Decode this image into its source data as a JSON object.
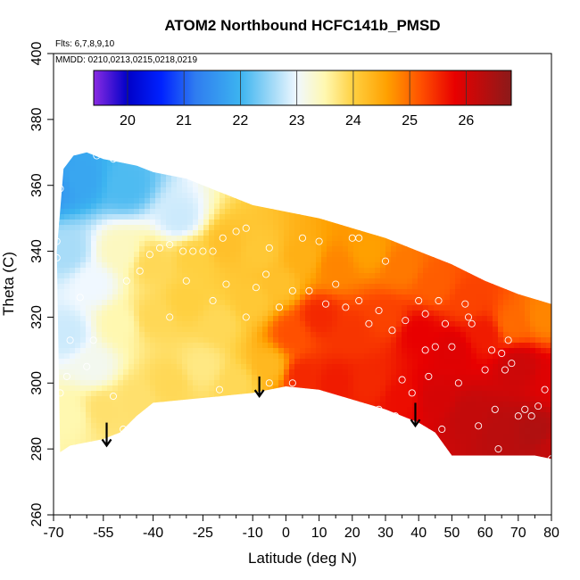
{
  "chart_data": {
    "type": "heatmap",
    "title": "ATOM2 Northbound HCFC141b_PMSD",
    "annotations": {
      "flights": "Flts: 6,7,8,9,10",
      "dates": "MMDD: 0210,0213,0215,0218,0219"
    },
    "xlabel": "Latitude (deg N)",
    "ylabel": "Theta (C)",
    "xlim": [
      -70,
      80
    ],
    "ylim": [
      260,
      400
    ],
    "x_ticks": [
      -70,
      -55,
      -40,
      -25,
      -10,
      0,
      10,
      20,
      30,
      40,
      50,
      60,
      70,
      80
    ],
    "x_minor_ticks": [
      -65,
      -60,
      -50,
      -45,
      -35,
      -30,
      -20,
      -15,
      -5,
      5,
      15,
      25,
      35,
      45,
      55,
      65,
      75
    ],
    "y_ticks": [
      260,
      280,
      300,
      320,
      340,
      360,
      380,
      400
    ],
    "colorbar": {
      "range": [
        19.4,
        26.8
      ],
      "ticks": [
        20,
        21,
        22,
        23,
        24,
        25,
        26
      ],
      "stops": [
        {
          "v": 19.4,
          "c": "#8a2be2"
        },
        {
          "v": 20.0,
          "c": "#0000c8"
        },
        {
          "v": 20.6,
          "c": "#0022ff"
        },
        {
          "v": 21.2,
          "c": "#2f7cf0"
        },
        {
          "v": 22.0,
          "c": "#3cb4f0"
        },
        {
          "v": 22.6,
          "c": "#a8dcf8"
        },
        {
          "v": 23.0,
          "c": "#f0f8ff"
        },
        {
          "v": 23.5,
          "c": "#fff8b0"
        },
        {
          "v": 24.0,
          "c": "#ffd040"
        },
        {
          "v": 24.6,
          "c": "#ffa000"
        },
        {
          "v": 25.2,
          "c": "#ff5000"
        },
        {
          "v": 25.8,
          "c": "#e80000"
        },
        {
          "v": 26.8,
          "c": "#8b1a1a"
        }
      ]
    },
    "region_boundary": {
      "top": [
        [
          -69,
          340
        ],
        [
          -67,
          365
        ],
        [
          -64,
          369
        ],
        [
          -60,
          370
        ],
        [
          -55,
          368
        ],
        [
          -50,
          367
        ],
        [
          -45,
          366
        ],
        [
          -40,
          364
        ],
        [
          -30,
          362
        ],
        [
          -20,
          358
        ],
        [
          -10,
          354
        ],
        [
          0,
          352
        ],
        [
          10,
          350
        ],
        [
          20,
          347
        ],
        [
          30,
          344
        ],
        [
          40,
          340
        ],
        [
          50,
          336
        ],
        [
          60,
          331
        ],
        [
          70,
          327
        ],
        [
          80,
          324
        ]
      ],
      "bottom": [
        [
          80,
          277
        ],
        [
          75,
          278
        ],
        [
          60,
          278
        ],
        [
          50,
          278
        ],
        [
          45,
          285
        ],
        [
          40,
          288
        ],
        [
          30,
          292
        ],
        [
          20,
          295
        ],
        [
          10,
          298
        ],
        [
          0,
          299
        ],
        [
          -10,
          297
        ],
        [
          -20,
          296
        ],
        [
          -30,
          295
        ],
        [
          -40,
          294
        ],
        [
          -45,
          290
        ],
        [
          -50,
          285
        ],
        [
          -55,
          283
        ],
        [
          -60,
          282
        ],
        [
          -65,
          281
        ],
        [
          -68,
          279
        ]
      ]
    },
    "field_nodes": [
      {
        "lat": -70,
        "theta": 360,
        "v": 21.6
      },
      {
        "lat": -62,
        "theta": 362,
        "v": 21.8
      },
      {
        "lat": -48,
        "theta": 360,
        "v": 22.1
      },
      {
        "lat": -32,
        "theta": 350,
        "v": 22.8
      },
      {
        "lat": -66,
        "theta": 340,
        "v": 22.6
      },
      {
        "lat": -58,
        "theta": 330,
        "v": 23.0
      },
      {
        "lat": -50,
        "theta": 340,
        "v": 23.4
      },
      {
        "lat": -40,
        "theta": 336,
        "v": 23.9
      },
      {
        "lat": -28,
        "theta": 338,
        "v": 24.0
      },
      {
        "lat": -18,
        "theta": 342,
        "v": 24.2
      },
      {
        "lat": -8,
        "theta": 340,
        "v": 24.1
      },
      {
        "lat": 5,
        "theta": 338,
        "v": 24.4
      },
      {
        "lat": 15,
        "theta": 335,
        "v": 24.8
      },
      {
        "lat": 25,
        "theta": 340,
        "v": 24.6
      },
      {
        "lat": 35,
        "theta": 335,
        "v": 24.9
      },
      {
        "lat": 45,
        "theta": 330,
        "v": 25.1
      },
      {
        "lat": 55,
        "theta": 325,
        "v": 25.3
      },
      {
        "lat": 68,
        "theta": 318,
        "v": 25.0
      },
      {
        "lat": 78,
        "theta": 320,
        "v": 24.8
      },
      {
        "lat": -66,
        "theta": 315,
        "v": 22.8
      },
      {
        "lat": -58,
        "theta": 305,
        "v": 23.1
      },
      {
        "lat": -50,
        "theta": 318,
        "v": 23.5
      },
      {
        "lat": -40,
        "theta": 320,
        "v": 23.9
      },
      {
        "lat": -30,
        "theta": 325,
        "v": 24.0
      },
      {
        "lat": -20,
        "theta": 318,
        "v": 23.9
      },
      {
        "lat": -10,
        "theta": 325,
        "v": 24.1
      },
      {
        "lat": -2,
        "theta": 330,
        "v": 24.2
      },
      {
        "lat": 2,
        "theta": 315,
        "v": 25.2
      },
      {
        "lat": 10,
        "theta": 320,
        "v": 25.5
      },
      {
        "lat": 20,
        "theta": 315,
        "v": 25.4
      },
      {
        "lat": 30,
        "theta": 320,
        "v": 25.3
      },
      {
        "lat": 40,
        "theta": 315,
        "v": 25.8
      },
      {
        "lat": 50,
        "theta": 310,
        "v": 25.9
      },
      {
        "lat": 60,
        "theta": 315,
        "v": 25.6
      },
      {
        "lat": 70,
        "theta": 305,
        "v": 26.1
      },
      {
        "lat": 80,
        "theta": 300,
        "v": 25.9
      },
      {
        "lat": -65,
        "theta": 290,
        "v": 23.5
      },
      {
        "lat": -55,
        "theta": 292,
        "v": 23.8
      },
      {
        "lat": -45,
        "theta": 295,
        "v": 23.8
      },
      {
        "lat": -35,
        "theta": 300,
        "v": 23.9
      },
      {
        "lat": -25,
        "theta": 305,
        "v": 23.7
      },
      {
        "lat": -15,
        "theta": 300,
        "v": 23.9
      },
      {
        "lat": -5,
        "theta": 305,
        "v": 24.3
      },
      {
        "lat": 5,
        "theta": 302,
        "v": 25.5
      },
      {
        "lat": 15,
        "theta": 300,
        "v": 25.6
      },
      {
        "lat": 25,
        "theta": 300,
        "v": 25.5
      },
      {
        "lat": 35,
        "theta": 295,
        "v": 25.7
      },
      {
        "lat": 45,
        "theta": 295,
        "v": 26.0
      },
      {
        "lat": 55,
        "theta": 290,
        "v": 26.2
      },
      {
        "lat": 65,
        "theta": 285,
        "v": 26.3
      },
      {
        "lat": 75,
        "theta": 285,
        "v": 26.4
      },
      {
        "lat": 80,
        "theta": 280,
        "v": 26.2
      }
    ],
    "sample_points": [
      [
        -57,
        369
      ],
      [
        -52,
        368
      ],
      [
        -68,
        359
      ],
      [
        -69,
        343
      ],
      [
        -69,
        338
      ],
      [
        -70,
        334
      ],
      [
        -62,
        326
      ],
      [
        -65,
        313
      ],
      [
        -58,
        313
      ],
      [
        -60,
        305
      ],
      [
        -66,
        302
      ],
      [
        -68,
        297
      ],
      [
        -52,
        296
      ],
      [
        -49,
        286
      ],
      [
        -48,
        331
      ],
      [
        -44,
        334
      ],
      [
        -41,
        339
      ],
      [
        -38,
        341
      ],
      [
        -35,
        342
      ],
      [
        -31,
        340
      ],
      [
        -28,
        340
      ],
      [
        -25,
        340
      ],
      [
        -22,
        340
      ],
      [
        -19,
        344
      ],
      [
        -15,
        346
      ],
      [
        -12,
        347
      ],
      [
        -5,
        341
      ],
      [
        -30,
        331
      ],
      [
        -22,
        325
      ],
      [
        -18,
        330
      ],
      [
        -12,
        320
      ],
      [
        -35,
        320
      ],
      [
        -9,
        329
      ],
      [
        -6,
        333
      ],
      [
        -2,
        323
      ],
      [
        2,
        328
      ],
      [
        5,
        344
      ],
      [
        7,
        328
      ],
      [
        10,
        343
      ],
      [
        12,
        324
      ],
      [
        15,
        330
      ],
      [
        20,
        344
      ],
      [
        22,
        344
      ],
      [
        25,
        347
      ],
      [
        -20,
        298
      ],
      [
        -5,
        300
      ],
      [
        2,
        300
      ],
      [
        8,
        297
      ],
      [
        12,
        294
      ],
      [
        18,
        323
      ],
      [
        22,
        325
      ],
      [
        25,
        318
      ],
      [
        28,
        322
      ],
      [
        30,
        337
      ],
      [
        32,
        316
      ],
      [
        36,
        319
      ],
      [
        38,
        344
      ],
      [
        40,
        325
      ],
      [
        42,
        321
      ],
      [
        43,
        302
      ],
      [
        46,
        325
      ],
      [
        48,
        318
      ],
      [
        50,
        311
      ],
      [
        54,
        324
      ],
      [
        56,
        318
      ],
      [
        60,
        304
      ],
      [
        62,
        310
      ],
      [
        63,
        292
      ],
      [
        65,
        309
      ],
      [
        66,
        304
      ],
      [
        67,
        313
      ],
      [
        68,
        306
      ],
      [
        70,
        290
      ],
      [
        72,
        292
      ],
      [
        74,
        290
      ],
      [
        76,
        293
      ],
      [
        78,
        298
      ],
      [
        80,
        277
      ],
      [
        28,
        292
      ],
      [
        33,
        290
      ],
      [
        35,
        301
      ],
      [
        38,
        297
      ],
      [
        42,
        310
      ],
      [
        45,
        311
      ],
      [
        47,
        286
      ],
      [
        52,
        300
      ],
      [
        55,
        320
      ],
      [
        58,
        287
      ],
      [
        64,
        280
      ]
    ],
    "arrows": [
      {
        "lat": -54,
        "theta_start": 288,
        "theta_end": 281
      },
      {
        "lat": -8,
        "theta_start": 302,
        "theta_end": 296
      },
      {
        "lat": 39,
        "theta_start": 294,
        "theta_end": 287
      }
    ]
  }
}
